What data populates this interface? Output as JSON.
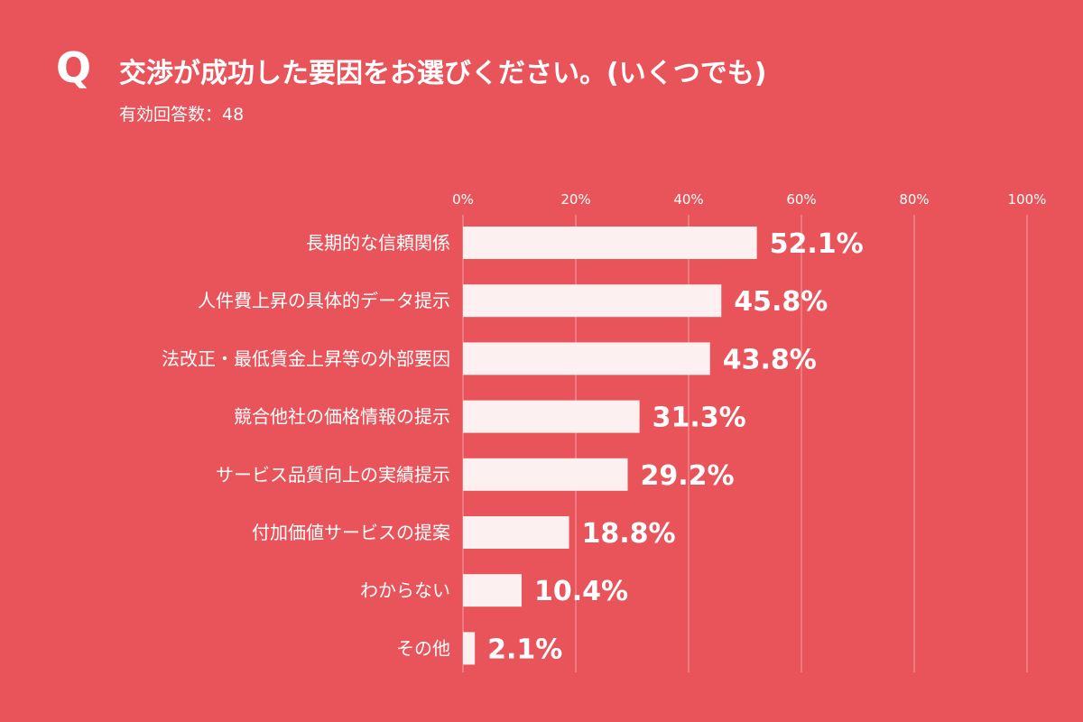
{
  "header": {
    "q_mark": "Q",
    "question": "交渉が成功した要因をお選びください。(いくつでも)",
    "responses": "有効回答数：48"
  },
  "colors": {
    "background": "#e9545b",
    "bar": "#fdf0f0",
    "text": "#ffffff",
    "grid": "rgba(255,255,255,0.45)"
  },
  "chart_data": {
    "type": "bar",
    "orientation": "horizontal",
    "title": "交渉が成功した要因をお選びください。(いくつでも)",
    "subtitle": "有効回答数：48",
    "categories": [
      "長期的な信頼関係",
      "人件費上昇の具体的データ提示",
      "法改正・最低賃金上昇等の外部要因",
      "競合他社の価格情報の提示",
      "サービス品質向上の実績提示",
      "付加価値サービスの提案",
      "わからない",
      "その他"
    ],
    "values": [
      52.1,
      45.8,
      43.8,
      31.3,
      29.2,
      18.8,
      10.4,
      2.1
    ],
    "value_labels": [
      "52.1%",
      "45.8%",
      "43.8%",
      "31.3%",
      "29.2%",
      "18.8%",
      "10.4%",
      "2.1%"
    ],
    "x_ticks": [
      0,
      20,
      40,
      60,
      80,
      100
    ],
    "x_tick_labels": [
      "0%",
      "20%",
      "40%",
      "60%",
      "80%",
      "100%"
    ],
    "xlim": [
      0,
      100
    ],
    "grid": true,
    "legend": "none"
  }
}
